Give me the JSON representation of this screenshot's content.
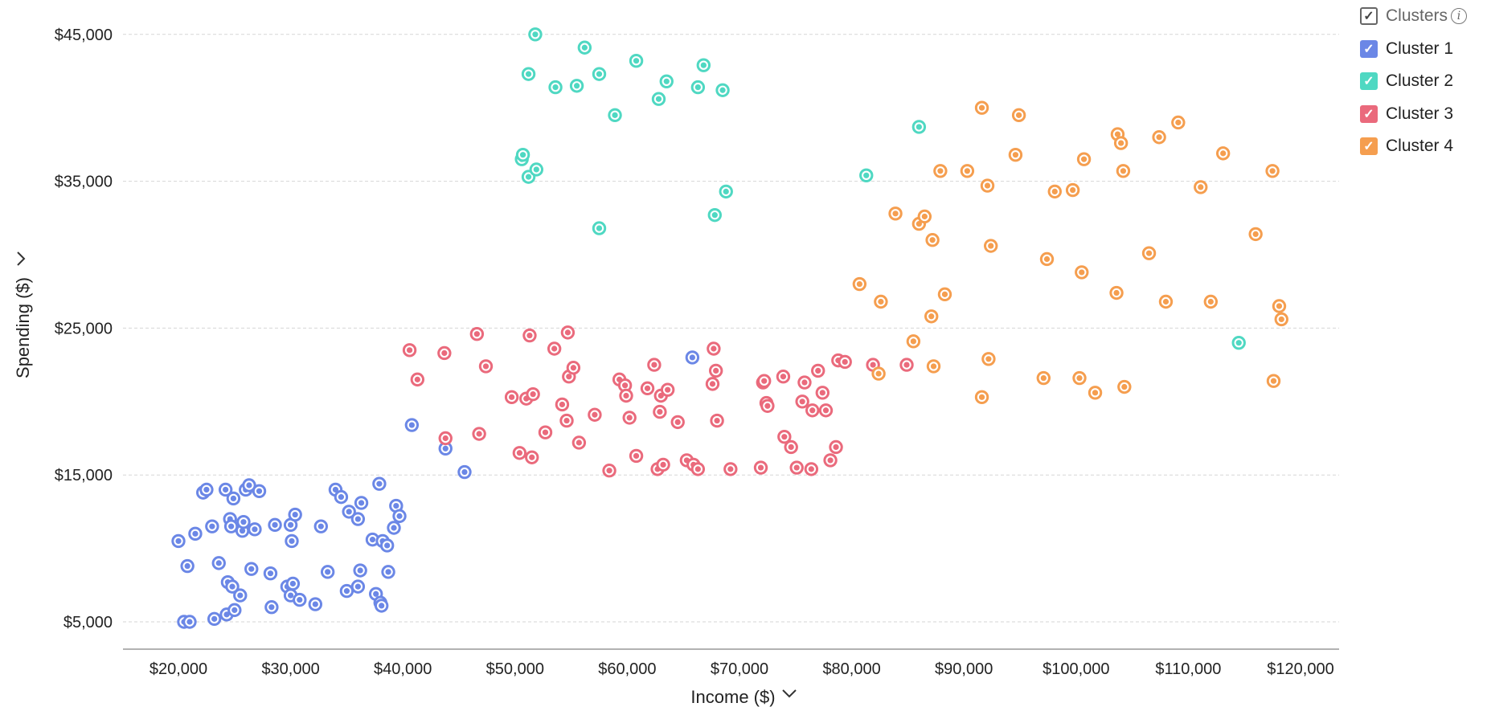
{
  "chart_data": {
    "type": "scatter",
    "xlabel": "Income ($)",
    "ylabel": "Spending ($)",
    "xlim": [
      15000,
      124000
    ],
    "ylim": [
      3000,
      46000
    ],
    "x_ticks": [
      20000,
      30000,
      40000,
      50000,
      60000,
      70000,
      80000,
      90000,
      100000,
      110000,
      120000
    ],
    "x_tick_labels": [
      "$20,000",
      "$30,000",
      "$40,000",
      "$50,000",
      "$60,000",
      "$70,000",
      "$80,000",
      "$90,000",
      "$100,000",
      "$110,000",
      "$120,000"
    ],
    "y_ticks": [
      5000,
      15000,
      25000,
      35000,
      45000
    ],
    "y_tick_labels": [
      "$5,000",
      "$15,000",
      "$25,000",
      "$35,000",
      "$45,000"
    ],
    "grid": "horizontal dashed",
    "legend_position": "top-right",
    "legend_title": "Clusters",
    "series": [
      {
        "name": "Cluster 1",
        "color": "#6b87e6",
        "points": [
          [
            20000,
            10500
          ],
          [
            20500,
            5000
          ],
          [
            20800,
            8800
          ],
          [
            21000,
            5000
          ],
          [
            21500,
            11000
          ],
          [
            22200,
            13800
          ],
          [
            22500,
            14000
          ],
          [
            23000,
            11500
          ],
          [
            23200,
            5200
          ],
          [
            23600,
            9000
          ],
          [
            24200,
            14000
          ],
          [
            24300,
            5500
          ],
          [
            24400,
            7700
          ],
          [
            24600,
            12000
          ],
          [
            24700,
            11500
          ],
          [
            24800,
            7400
          ],
          [
            24900,
            13400
          ],
          [
            25000,
            5800
          ],
          [
            25500,
            6800
          ],
          [
            25700,
            11200
          ],
          [
            25800,
            11800
          ],
          [
            26000,
            14000
          ],
          [
            26300,
            14300
          ],
          [
            26500,
            8600
          ],
          [
            26800,
            11300
          ],
          [
            27200,
            13900
          ],
          [
            28200,
            8300
          ],
          [
            28300,
            6000
          ],
          [
            28600,
            11600
          ],
          [
            29700,
            7400
          ],
          [
            30000,
            6800
          ],
          [
            30000,
            11600
          ],
          [
            30100,
            10500
          ],
          [
            30200,
            7600
          ],
          [
            30400,
            12300
          ],
          [
            30800,
            6500
          ],
          [
            32200,
            6200
          ],
          [
            32700,
            11500
          ],
          [
            33300,
            8400
          ],
          [
            34000,
            14000
          ],
          [
            34500,
            13500
          ],
          [
            35000,
            7100
          ],
          [
            35200,
            12500
          ],
          [
            36000,
            12000
          ],
          [
            36000,
            7400
          ],
          [
            36200,
            8500
          ],
          [
            36300,
            13100
          ],
          [
            37300,
            10600
          ],
          [
            37600,
            6900
          ],
          [
            37900,
            14400
          ],
          [
            38000,
            6300
          ],
          [
            38100,
            6100
          ],
          [
            38200,
            10500
          ],
          [
            38600,
            10200
          ],
          [
            38700,
            8400
          ],
          [
            39200,
            11400
          ],
          [
            39400,
            12900
          ],
          [
            39700,
            12200
          ],
          [
            40800,
            18400
          ],
          [
            43800,
            16800
          ],
          [
            45500,
            15200
          ],
          [
            65800,
            23000
          ]
        ]
      },
      {
        "name": "Cluster 2",
        "color": "#4fd8c2",
        "points": [
          [
            50600,
            36500
          ],
          [
            50700,
            36800
          ],
          [
            51200,
            42300
          ],
          [
            51200,
            35300
          ],
          [
            51800,
            45000
          ],
          [
            51900,
            35800
          ],
          [
            53600,
            41400
          ],
          [
            55500,
            41500
          ],
          [
            56200,
            44100
          ],
          [
            57500,
            42300
          ],
          [
            57500,
            31800
          ],
          [
            58900,
            39500
          ],
          [
            60800,
            43200
          ],
          [
            62800,
            40600
          ],
          [
            63500,
            41800
          ],
          [
            66300,
            41400
          ],
          [
            66800,
            42900
          ],
          [
            67800,
            32700
          ],
          [
            68500,
            41200
          ],
          [
            68800,
            34300
          ],
          [
            81300,
            35400
          ],
          [
            86000,
            38700
          ],
          [
            114500,
            24000
          ]
        ]
      },
      {
        "name": "Cluster 3",
        "color": "#ea6a7c",
        "points": [
          [
            40600,
            23500
          ],
          [
            41300,
            21500
          ],
          [
            43700,
            23300
          ],
          [
            43800,
            17500
          ],
          [
            46600,
            24600
          ],
          [
            46800,
            17800
          ],
          [
            47400,
            22400
          ],
          [
            49700,
            20300
          ],
          [
            50400,
            16500
          ],
          [
            51000,
            20200
          ],
          [
            51300,
            24500
          ],
          [
            51500,
            16200
          ],
          [
            51600,
            20500
          ],
          [
            52700,
            17900
          ],
          [
            53500,
            23600
          ],
          [
            54200,
            19800
          ],
          [
            54600,
            18700
          ],
          [
            54700,
            24700
          ],
          [
            54800,
            21700
          ],
          [
            55200,
            22300
          ],
          [
            55700,
            17200
          ],
          [
            57100,
            19100
          ],
          [
            58400,
            15300
          ],
          [
            59300,
            21500
          ],
          [
            59800,
            21100
          ],
          [
            59900,
            20400
          ],
          [
            60200,
            18900
          ],
          [
            60800,
            16300
          ],
          [
            61800,
            20900
          ],
          [
            62400,
            22500
          ],
          [
            62700,
            15400
          ],
          [
            62900,
            19300
          ],
          [
            63000,
            20400
          ],
          [
            63200,
            15700
          ],
          [
            63600,
            20800
          ],
          [
            64500,
            18600
          ],
          [
            65300,
            16000
          ],
          [
            65900,
            15700
          ],
          [
            66300,
            15400
          ],
          [
            67600,
            21200
          ],
          [
            67700,
            23600
          ],
          [
            67900,
            22100
          ],
          [
            68000,
            18700
          ],
          [
            69200,
            15400
          ],
          [
            71900,
            15500
          ],
          [
            72100,
            21300
          ],
          [
            72200,
            21400
          ],
          [
            72400,
            19900
          ],
          [
            72500,
            19700
          ],
          [
            73900,
            21700
          ],
          [
            74000,
            17600
          ],
          [
            74600,
            16900
          ],
          [
            75100,
            15500
          ],
          [
            75600,
            20000
          ],
          [
            75800,
            21300
          ],
          [
            76400,
            15400
          ],
          [
            76500,
            19400
          ],
          [
            77000,
            22100
          ],
          [
            77400,
            20600
          ],
          [
            77700,
            19400
          ],
          [
            78100,
            16000
          ],
          [
            78600,
            16900
          ],
          [
            78800,
            22800
          ],
          [
            79400,
            22700
          ],
          [
            81900,
            22500
          ],
          [
            84900,
            22500
          ]
        ]
      },
      {
        "name": "Cluster 4",
        "color": "#f59e4f",
        "points": [
          [
            80700,
            28000
          ],
          [
            82400,
            21900
          ],
          [
            82600,
            26800
          ],
          [
            83900,
            32800
          ],
          [
            85500,
            24100
          ],
          [
            86000,
            32100
          ],
          [
            86500,
            32600
          ],
          [
            87100,
            25800
          ],
          [
            87200,
            31000
          ],
          [
            87300,
            22400
          ],
          [
            87900,
            35700
          ],
          [
            88300,
            27300
          ],
          [
            90300,
            35700
          ],
          [
            91600,
            40000
          ],
          [
            91600,
            20300
          ],
          [
            92100,
            34700
          ],
          [
            92200,
            22900
          ],
          [
            92400,
            30600
          ],
          [
            94600,
            36800
          ],
          [
            94900,
            39500
          ],
          [
            97100,
            21600
          ],
          [
            97400,
            29700
          ],
          [
            98100,
            34300
          ],
          [
            99700,
            34400
          ],
          [
            100300,
            21600
          ],
          [
            100500,
            28800
          ],
          [
            100700,
            36500
          ],
          [
            101700,
            20600
          ],
          [
            103600,
            27400
          ],
          [
            103700,
            38200
          ],
          [
            104000,
            37600
          ],
          [
            104200,
            35700
          ],
          [
            104300,
            21000
          ],
          [
            106500,
            30100
          ],
          [
            107400,
            38000
          ],
          [
            108000,
            26800
          ],
          [
            109100,
            39000
          ],
          [
            111100,
            34600
          ],
          [
            112000,
            26800
          ],
          [
            113100,
            36900
          ],
          [
            116000,
            31400
          ],
          [
            117500,
            35700
          ],
          [
            117600,
            21400
          ],
          [
            118100,
            26500
          ],
          [
            118300,
            25600
          ]
        ]
      }
    ]
  }
}
